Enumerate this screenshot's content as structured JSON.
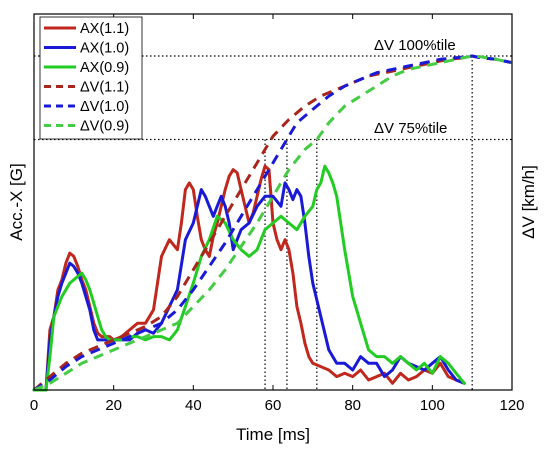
{
  "chart_data": {
    "type": "line",
    "xlabel": "Time [ms]",
    "ylabel_left": "Acc.-X [G]",
    "ylabel_right": "ΔV [km/h]",
    "xlim": [
      0,
      120
    ],
    "yticks_shown": false,
    "xticks": [
      "0",
      "20",
      "40",
      "60",
      "80",
      "100",
      "120"
    ],
    "legend_position": "top-left",
    "annotations": [
      {
        "text": "ΔV 100%tile",
        "level": 1.0
      },
      {
        "text": "ΔV 75%tile",
        "level": 0.75
      }
    ],
    "marker_times": [
      58,
      63.5,
      71,
      110
    ],
    "series": [
      {
        "name": "AX(1.1)",
        "color": "#c0271d",
        "style": "solid",
        "axis": "left",
        "x": [
          0,
          3,
          4,
          5,
          6,
          7,
          8,
          9,
          10,
          11,
          12,
          13,
          14,
          15,
          16,
          17,
          18,
          19,
          20,
          22,
          24,
          26,
          28,
          30,
          32,
          34,
          36,
          37,
          38,
          39,
          40,
          41,
          42,
          43,
          44,
          45,
          46,
          47,
          48,
          49,
          50,
          51,
          52,
          53,
          54,
          55,
          56,
          57,
          58,
          59,
          60,
          61,
          62,
          63,
          64,
          65,
          66,
          67,
          68,
          69,
          70,
          72,
          74,
          76,
          78,
          80,
          82,
          84,
          86,
          88,
          90,
          92,
          94,
          96,
          98,
          100,
          102,
          104,
          106,
          108
        ],
        "y": [
          0,
          0,
          0.18,
          0.22,
          0.3,
          0.33,
          0.38,
          0.41,
          0.4,
          0.37,
          0.33,
          0.3,
          0.25,
          0.2,
          0.17,
          0.16,
          0.16,
          0.16,
          0.15,
          0.16,
          0.18,
          0.2,
          0.2,
          0.24,
          0.4,
          0.45,
          0.42,
          0.5,
          0.6,
          0.62,
          0.6,
          0.52,
          0.45,
          0.42,
          0.4,
          0.46,
          0.5,
          0.55,
          0.6,
          0.64,
          0.66,
          0.65,
          0.6,
          0.55,
          0.5,
          0.53,
          0.58,
          0.63,
          0.67,
          0.66,
          0.5,
          0.45,
          0.42,
          0.45,
          0.42,
          0.35,
          0.25,
          0.2,
          0.14,
          0.1,
          0.08,
          0.07,
          0.06,
          0.04,
          0.05,
          0.04,
          0.06,
          0.03,
          0.04,
          0.05,
          0.02,
          0.05,
          0.03,
          0.04,
          0.06,
          0.05,
          0.08,
          0.04,
          0.03,
          0.02
        ]
      },
      {
        "name": "AX(1.0)",
        "color": "#1a1ad6",
        "style": "solid",
        "axis": "left",
        "x": [
          0,
          3,
          4,
          5,
          6,
          7,
          8,
          9,
          10,
          11,
          12,
          13,
          14,
          15,
          16,
          17,
          18,
          19,
          20,
          22,
          24,
          26,
          28,
          30,
          32,
          34,
          36,
          38,
          40,
          41,
          42,
          43,
          44,
          45,
          46,
          47,
          48,
          49,
          50,
          52,
          54,
          56,
          58,
          60,
          62,
          63,
          64,
          65,
          66,
          67,
          68,
          69,
          70,
          72,
          74,
          76,
          78,
          80,
          82,
          84,
          86,
          88,
          90,
          92,
          94,
          96,
          98,
          100,
          102,
          104,
          106,
          108
        ],
        "y": [
          0,
          0,
          0.15,
          0.22,
          0.28,
          0.32,
          0.35,
          0.38,
          0.37,
          0.35,
          0.32,
          0.28,
          0.24,
          0.18,
          0.15,
          0.15,
          0.15,
          0.15,
          0.15,
          0.15,
          0.15,
          0.17,
          0.18,
          0.17,
          0.2,
          0.25,
          0.3,
          0.45,
          0.5,
          0.55,
          0.6,
          0.58,
          0.55,
          0.52,
          0.55,
          0.58,
          0.55,
          0.5,
          0.42,
          0.48,
          0.5,
          0.55,
          0.58,
          0.58,
          0.55,
          0.62,
          0.6,
          0.57,
          0.6,
          0.58,
          0.5,
          0.4,
          0.32,
          0.22,
          0.12,
          0.08,
          0.08,
          0.06,
          0.1,
          0.08,
          0.08,
          0.04,
          0.06,
          0.1,
          0.08,
          0.07,
          0.06,
          0.08,
          0.1,
          0.06,
          0.03,
          0.02
        ]
      },
      {
        "name": "AX(0.9)",
        "color": "#22cc22",
        "style": "solid",
        "axis": "left",
        "x": [
          0,
          3,
          4,
          5,
          6,
          7,
          8,
          9,
          10,
          11,
          12,
          13,
          14,
          15,
          16,
          17,
          18,
          19,
          20,
          22,
          24,
          26,
          28,
          30,
          32,
          34,
          36,
          38,
          40,
          42,
          44,
          46,
          48,
          50,
          52,
          54,
          56,
          58,
          60,
          62,
          64,
          66,
          68,
          70,
          71,
          72,
          73,
          74,
          75,
          76,
          77,
          78,
          79,
          80,
          82,
          84,
          86,
          88,
          90,
          92,
          94,
          96,
          98,
          100,
          102,
          104,
          106,
          108
        ],
        "y": [
          0,
          0,
          0.1,
          0.22,
          0.25,
          0.28,
          0.3,
          0.32,
          0.33,
          0.34,
          0.35,
          0.33,
          0.3,
          0.26,
          0.22,
          0.18,
          0.16,
          0.15,
          0.15,
          0.15,
          0.16,
          0.16,
          0.15,
          0.16,
          0.16,
          0.15,
          0.18,
          0.25,
          0.32,
          0.4,
          0.45,
          0.52,
          0.5,
          0.45,
          0.42,
          0.4,
          0.42,
          0.48,
          0.5,
          0.52,
          0.5,
          0.48,
          0.52,
          0.55,
          0.6,
          0.62,
          0.67,
          0.65,
          0.62,
          0.58,
          0.5,
          0.42,
          0.35,
          0.28,
          0.2,
          0.12,
          0.1,
          0.1,
          0.08,
          0.1,
          0.08,
          0.06,
          0.08,
          0.05,
          0.1,
          0.08,
          0.05,
          0.02
        ]
      },
      {
        "name": "ΔV(1.1)",
        "color": "#a8261c",
        "style": "dashed",
        "axis": "right",
        "x": [
          0,
          4,
          8,
          12,
          16,
          20,
          24,
          28,
          32,
          36,
          40,
          44,
          48,
          52,
          56,
          58,
          60,
          64,
          68,
          72,
          76,
          80,
          84,
          88,
          92,
          96,
          100,
          104,
          108,
          110,
          112,
          116,
          120
        ],
        "y": [
          0,
          0.04,
          0.08,
          0.11,
          0.13,
          0.15,
          0.17,
          0.19,
          0.22,
          0.28,
          0.36,
          0.44,
          0.52,
          0.6,
          0.68,
          0.72,
          0.76,
          0.81,
          0.85,
          0.88,
          0.9,
          0.92,
          0.94,
          0.95,
          0.96,
          0.97,
          0.98,
          0.99,
          0.995,
          1.0,
          0.995,
          0.99,
          0.98
        ]
      },
      {
        "name": "ΔV(1.0)",
        "color": "#1a1ad6",
        "style": "dashed",
        "axis": "right",
        "x": [
          0,
          4,
          8,
          12,
          16,
          20,
          24,
          28,
          32,
          36,
          40,
          44,
          48,
          52,
          56,
          60,
          63.5,
          66,
          70,
          74,
          78,
          82,
          86,
          90,
          94,
          98,
          102,
          106,
          110,
          112,
          116,
          120
        ],
        "y": [
          0,
          0.03,
          0.07,
          0.1,
          0.12,
          0.14,
          0.16,
          0.18,
          0.2,
          0.24,
          0.3,
          0.37,
          0.44,
          0.52,
          0.6,
          0.68,
          0.75,
          0.8,
          0.84,
          0.88,
          0.91,
          0.93,
          0.95,
          0.96,
          0.97,
          0.98,
          0.99,
          0.995,
          1.0,
          0.995,
          0.99,
          0.98
        ]
      },
      {
        "name": "ΔV(0.9)",
        "color": "#44cc44",
        "style": "dashed",
        "axis": "right",
        "x": [
          0,
          4,
          8,
          12,
          16,
          20,
          24,
          28,
          32,
          36,
          40,
          44,
          48,
          52,
          56,
          60,
          64,
          68,
          71,
          74,
          78,
          82,
          86,
          90,
          94,
          98,
          102,
          106,
          110,
          112,
          116,
          120
        ],
        "y": [
          0,
          0.02,
          0.05,
          0.08,
          0.1,
          0.12,
          0.14,
          0.16,
          0.18,
          0.2,
          0.25,
          0.3,
          0.36,
          0.43,
          0.5,
          0.58,
          0.66,
          0.72,
          0.75,
          0.8,
          0.85,
          0.88,
          0.91,
          0.94,
          0.96,
          0.97,
          0.98,
          0.99,
          1.0,
          0.998,
          0.99,
          0.98
        ]
      }
    ]
  }
}
